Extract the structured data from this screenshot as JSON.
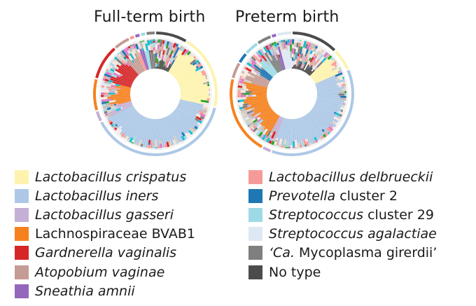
{
  "chart_data": [
    {
      "type": "pie",
      "title": "Full-term birth",
      "outer_ring": [
        {
          "type": "No type",
          "share": 0.085
        },
        {
          "type": "Lactobacillus crispatus",
          "share": 0.2
        },
        {
          "type": "Lactobacillus iners",
          "share": 0.39
        },
        {
          "type": "Lactobacillus gasseri",
          "share": 0.03
        },
        {
          "type": "Lachnospiraceae BVAB1",
          "share": 0.085
        },
        {
          "type": "Gardnerella vaginalis",
          "share": 0.095
        },
        {
          "type": "Atopobium vaginae",
          "share": 0.045
        },
        {
          "type": "Lactobacillus delbrueckii",
          "share": 0.015
        },
        {
          "type": "Sneathia amnii",
          "share": 0.015
        },
        {
          "type": "Streptococcus cluster 29",
          "share": 0.015
        },
        {
          "type": "Mycoplasma girerdii",
          "share": 0.025
        }
      ]
    },
    {
      "type": "pie",
      "title": "Preterm birth",
      "outer_ring": [
        {
          "type": "No type",
          "share": 0.125
        },
        {
          "type": "Lactobacillus crispatus",
          "share": 0.06
        },
        {
          "type": "Lactobacillus iners",
          "share": 0.37
        },
        {
          "type": "Lactobacillus gasseri",
          "share": 0.025
        },
        {
          "type": "Lachnospiraceae BVAB1",
          "share": 0.21
        },
        {
          "type": "Atopobium vaginae",
          "share": 0.045
        },
        {
          "type": "Prevotella cluster 2",
          "share": 0.03
        },
        {
          "type": "Streptococcus cluster 29",
          "share": 0.04
        },
        {
          "type": "Mycoplasma girerdii",
          "share": 0.04
        },
        {
          "type": "Sneathia amnii",
          "share": 0.015
        },
        {
          "type": "Streptococcus agalactiae",
          "share": 0.04
        }
      ]
    }
  ],
  "legend": {
    "left": [
      {
        "parts": [
          {
            "t": "Lactobacillus crispatus",
            "i": true
          }
        ],
        "color": "#fdf3ae"
      },
      {
        "parts": [
          {
            "t": "Lactobacillus iners",
            "i": true
          }
        ],
        "color": "#adc8e6"
      },
      {
        "parts": [
          {
            "t": "Lactobacillus gasseri",
            "i": true
          }
        ],
        "color": "#c5b0d5"
      },
      {
        "parts": [
          {
            "t": "Lachnospiraceae BVAB1",
            "i": false
          }
        ],
        "color": "#f5821f"
      },
      {
        "parts": [
          {
            "t": "Gardnerella vaginalis",
            "i": true
          }
        ],
        "color": "#d62728"
      },
      {
        "parts": [
          {
            "t": "Atopobium vaginae",
            "i": true
          }
        ],
        "color": "#c49c94"
      },
      {
        "parts": [
          {
            "t": "Sneathia amnii",
            "i": true
          }
        ],
        "color": "#9467bd"
      }
    ],
    "right": [
      {
        "parts": [
          {
            "t": "Lactobacillus delbrueckii",
            "i": true
          }
        ],
        "color": "#f59a98"
      },
      {
        "parts": [
          {
            "t": "Prevotella",
            "i": true
          },
          {
            "t": " cluster 2",
            "i": false
          }
        ],
        "color": "#1f77b4"
      },
      {
        "parts": [
          {
            "t": "Streptococcus",
            "i": true
          },
          {
            "t": " cluster 29",
            "i": false
          }
        ],
        "color": "#9edae5"
      },
      {
        "parts": [
          {
            "t": "Streptococcus agalactiae",
            "i": true
          }
        ],
        "color": "#dde8f3"
      },
      {
        "parts": [
          {
            "t": "‘Ca.",
            "i": true
          },
          {
            "t": " Mycoplasma girerdii’",
            "i": false
          }
        ],
        "color": "#7f7f7f"
      },
      {
        "parts": [
          {
            "t": "No type",
            "i": false
          }
        ],
        "color": "#4b4b4b"
      }
    ]
  }
}
